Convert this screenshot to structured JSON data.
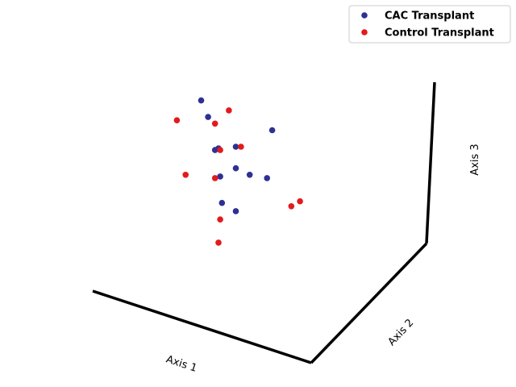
{
  "chart_data": {
    "type": "scatter",
    "projection": "3d",
    "grid": false,
    "legend_position": "top-right",
    "axes": {
      "x": {
        "label": "Axis 1"
      },
      "y": {
        "label": "Axis 2"
      },
      "z": {
        "label": "Axis 3"
      }
    },
    "series": [
      {
        "name": "CAC Transplant",
        "color": "#2e3192",
        "points": [
          {
            "x": 0.3,
            "y": 0.0,
            "z": 0.88
          },
          {
            "x": 0.34,
            "y": 0.0,
            "z": 0.78
          },
          {
            "x": 0.38,
            "y": 0.0,
            "z": 0.58
          },
          {
            "x": 0.4,
            "y": 0.0,
            "z": 0.59
          },
          {
            "x": 0.5,
            "y": 0.0,
            "z": 0.6
          },
          {
            "x": 0.71,
            "y": 0.0,
            "z": 0.7
          },
          {
            "x": 0.5,
            "y": 0.0,
            "z": 0.47
          },
          {
            "x": 0.58,
            "y": 0.0,
            "z": 0.43
          },
          {
            "x": 0.41,
            "y": 0.0,
            "z": 0.42
          },
          {
            "x": 0.68,
            "y": 0.0,
            "z": 0.41
          },
          {
            "x": 0.42,
            "y": 0.0,
            "z": 0.26
          },
          {
            "x": 0.5,
            "y": 0.0,
            "z": 0.21
          }
        ]
      },
      {
        "name": "Control Transplant",
        "color": "#e31a1c",
        "points": [
          {
            "x": 0.46,
            "y": 0.0,
            "z": 0.82
          },
          {
            "x": 0.38,
            "y": 0.0,
            "z": 0.74
          },
          {
            "x": 0.16,
            "y": 0.0,
            "z": 0.76
          },
          {
            "x": 0.53,
            "y": 0.0,
            "z": 0.6
          },
          {
            "x": 0.41,
            "y": 0.0,
            "z": 0.58
          },
          {
            "x": 0.21,
            "y": 0.0,
            "z": 0.43
          },
          {
            "x": 0.38,
            "y": 0.0,
            "z": 0.41
          },
          {
            "x": 0.82,
            "y": 0.0,
            "z": 0.24
          },
          {
            "x": 0.87,
            "y": 0.0,
            "z": 0.27
          },
          {
            "x": 0.41,
            "y": 0.0,
            "z": 0.16
          },
          {
            "x": 0.4,
            "y": 0.0,
            "z": 0.02
          }
        ]
      }
    ]
  }
}
